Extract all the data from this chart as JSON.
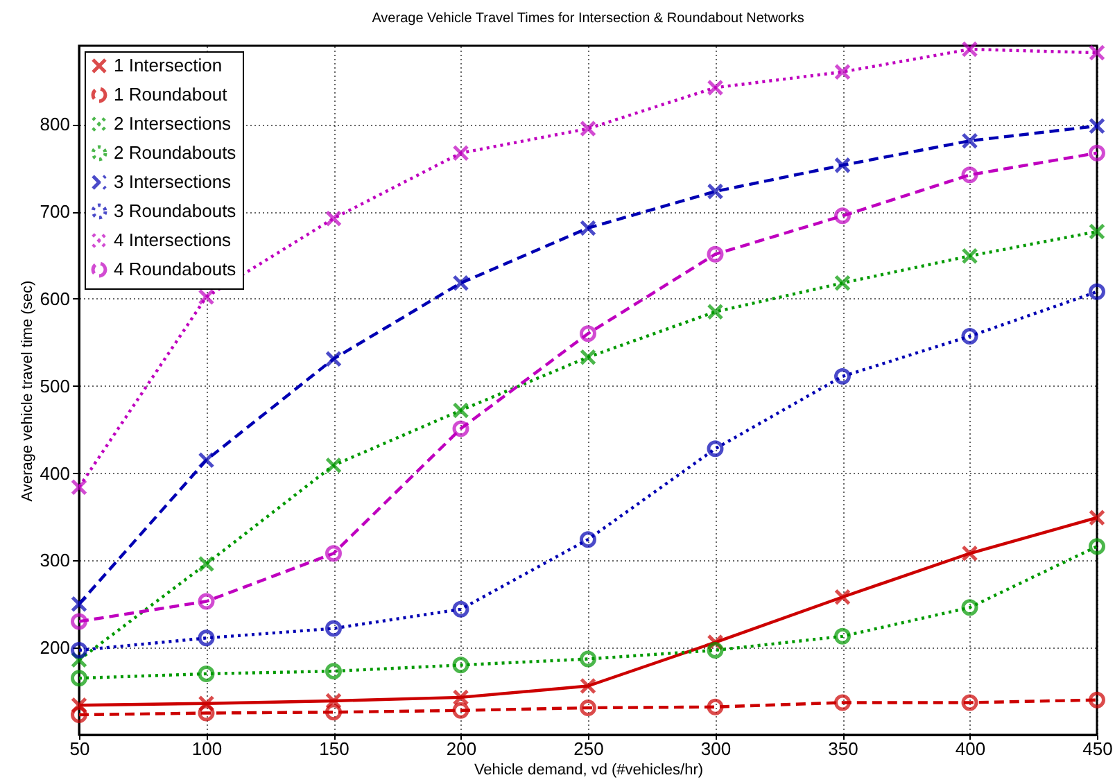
{
  "chart_data": {
    "type": "line",
    "title": "Average Vehicle Travel Times for Intersection & Roundabout Networks",
    "xlabel": "Vehicle demand, vd (#vehicles/hr)",
    "ylabel": "Average vehicle travel time (sec)",
    "x": [
      50,
      100,
      150,
      200,
      250,
      300,
      350,
      400,
      450
    ],
    "xlim": [
      50,
      450
    ],
    "xticks": [
      50,
      100,
      150,
      200,
      250,
      300,
      350,
      400,
      450
    ],
    "ylim": [
      100,
      890
    ],
    "yticks": [
      200,
      300,
      400,
      500,
      600,
      700,
      800
    ],
    "grid": true,
    "legend": "top left",
    "series": [
      {
        "name": "1 Intersection",
        "color": "#cc0000",
        "marker": "cross",
        "line_style": "solid",
        "values": [
          134,
          136,
          139,
          143,
          156,
          206,
          258,
          308,
          349
        ]
      },
      {
        "name": "1 Roundabout",
        "color": "#cc0000",
        "marker": "circle",
        "line_style": "dashed",
        "values": [
          123,
          125,
          126,
          128,
          131,
          132,
          137,
          137,
          140
        ]
      },
      {
        "name": "2 Intersections",
        "color": "#009900",
        "marker": "cross",
        "line_style": "dotted",
        "values": [
          186,
          296,
          409,
          472,
          533,
          585,
          618,
          649,
          677
        ]
      },
      {
        "name": "2 Roundabouts",
        "color": "#009900",
        "marker": "circle",
        "line_style": "dotted",
        "values": [
          165,
          170,
          173,
          180,
          187,
          197,
          213,
          246,
          316
        ]
      },
      {
        "name": "3 Intersections",
        "color": "#0000b3",
        "marker": "cross",
        "line_style": "dashed",
        "values": [
          250,
          415,
          531,
          618,
          681,
          723,
          753,
          781,
          798
        ]
      },
      {
        "name": "3 Roundabouts",
        "color": "#0000b3",
        "marker": "circle",
        "line_style": "dotted",
        "values": [
          197,
          211,
          222,
          244,
          324,
          428,
          511,
          557,
          608
        ]
      },
      {
        "name": "4 Intersections",
        "color": "#bf00bf",
        "marker": "cross",
        "line_style": "dotted",
        "values": [
          384,
          602,
          692,
          767,
          795,
          842,
          860,
          886,
          882
        ]
      },
      {
        "name": "4 Roundabouts",
        "color": "#bf00bf",
        "marker": "circle",
        "line_style": "dashed",
        "values": [
          230,
          253,
          308,
          451,
          560,
          651,
          695,
          742,
          767
        ]
      }
    ]
  }
}
